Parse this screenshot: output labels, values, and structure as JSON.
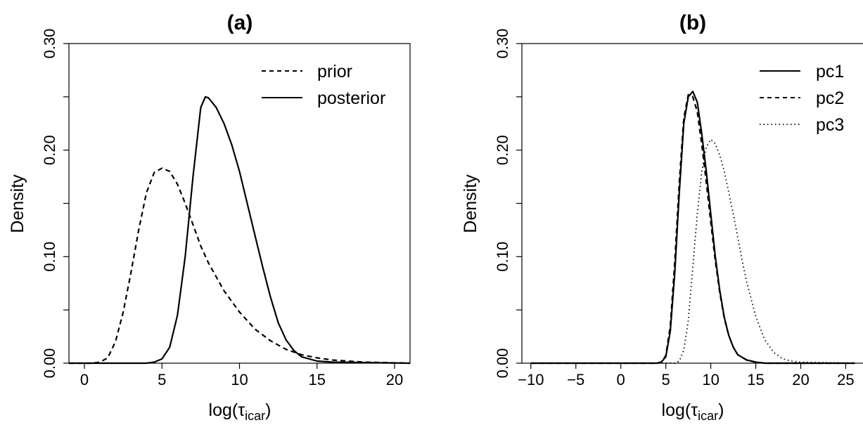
{
  "chart_data": [
    {
      "type": "line",
      "title": "(a)",
      "xlabel": "log(τicar)",
      "xlabel_main": "log(",
      "xlabel_greek": "τ",
      "xlabel_sub": "icar",
      "xlabel_close": ")",
      "ylabel": "Density",
      "xlim": [
        -1,
        21
      ],
      "ylim": [
        0,
        0.3
      ],
      "xticks": [
        0,
        5,
        10,
        15,
        20
      ],
      "xtick_labels": [
        "0",
        "5",
        "10",
        "15",
        "20"
      ],
      "yticks": [
        0,
        0.1,
        0.2,
        0.3
      ],
      "ytick_labels": [
        "0.00",
        "0.10",
        "0.20",
        "0.30"
      ],
      "minor_yticks": [
        0.05,
        0.15,
        0.25
      ],
      "grid": false,
      "legend_position": "top-right",
      "series": [
        {
          "name": "prior",
          "dash": "dashed",
          "x": [
            -1,
            0.5,
            1.0,
            1.5,
            2.0,
            2.5,
            3.0,
            3.5,
            4.0,
            4.5,
            5.0,
            5.5,
            6.0,
            6.5,
            7.0,
            7.5,
            8.0,
            9.0,
            10.0,
            11.0,
            12.0,
            13.0,
            14.0,
            15.0,
            16.0,
            18.0,
            21
          ],
          "y": [
            0,
            0,
            0.001,
            0.005,
            0.02,
            0.048,
            0.085,
            0.125,
            0.16,
            0.179,
            0.183,
            0.18,
            0.168,
            0.15,
            0.13,
            0.11,
            0.094,
            0.068,
            0.048,
            0.032,
            0.021,
            0.013,
            0.008,
            0.005,
            0.003,
            0.001,
            0
          ]
        },
        {
          "name": "posterior",
          "dash": "solid",
          "x": [
            -1,
            4.0,
            4.5,
            5.0,
            5.5,
            6.0,
            6.5,
            7.0,
            7.5,
            7.8,
            8.0,
            8.5,
            9.0,
            9.5,
            10.0,
            10.5,
            11.0,
            11.5,
            12.0,
            12.5,
            13.0,
            13.5,
            14.0,
            15.0,
            16.0,
            21
          ],
          "y": [
            0,
            0,
            0.001,
            0.004,
            0.015,
            0.045,
            0.1,
            0.175,
            0.24,
            0.25,
            0.249,
            0.24,
            0.225,
            0.205,
            0.18,
            0.15,
            0.12,
            0.09,
            0.062,
            0.038,
            0.022,
            0.012,
            0.006,
            0.002,
            0.001,
            0
          ]
        }
      ]
    },
    {
      "type": "line",
      "title": "(b)",
      "xlabel": "log(τicar)",
      "xlabel_main": "log(",
      "xlabel_greek": "τ",
      "xlabel_sub": "icar",
      "xlabel_close": ")",
      "ylabel": "Density",
      "xlim": [
        -11,
        27
      ],
      "ylim": [
        0,
        0.3
      ],
      "xticks": [
        -10,
        -5,
        0,
        5,
        10,
        15,
        20,
        25
      ],
      "xtick_labels": [
        "−10",
        "−5",
        "0",
        "5",
        "10",
        "15",
        "20",
        "25"
      ],
      "yticks": [
        0,
        0.1,
        0.2,
        0.3
      ],
      "ytick_labels": [
        "0.00",
        "0.10",
        "0.20",
        "0.30"
      ],
      "minor_yticks": [
        0.05,
        0.15,
        0.25
      ],
      "grid": false,
      "legend_position": "top-right",
      "series": [
        {
          "name": "pc1",
          "dash": "solid",
          "x": [
            -10,
            4.0,
            4.5,
            5.0,
            5.5,
            6.0,
            6.5,
            7.0,
            7.5,
            8.0,
            8.5,
            9.0,
            9.5,
            10.0,
            10.5,
            11.0,
            11.5,
            12.0,
            12.5,
            13.0,
            14.0,
            15.0,
            16.0,
            26
          ],
          "y": [
            0,
            0,
            0.001,
            0.006,
            0.03,
            0.085,
            0.16,
            0.225,
            0.25,
            0.255,
            0.245,
            0.215,
            0.18,
            0.14,
            0.1,
            0.068,
            0.043,
            0.026,
            0.015,
            0.008,
            0.003,
            0.001,
            0,
            0
          ]
        },
        {
          "name": "pc2",
          "dash": "dashed",
          "x": [
            -10,
            4.0,
            4.5,
            5.0,
            5.5,
            6.0,
            6.5,
            7.0,
            7.5,
            8.0,
            8.5,
            9.0,
            9.5,
            10.0,
            10.5,
            11.0,
            11.5,
            12.0,
            12.5,
            13.0,
            14.0,
            15.0,
            16.0,
            26
          ],
          "y": [
            0,
            0,
            0.001,
            0.007,
            0.035,
            0.095,
            0.17,
            0.23,
            0.252,
            0.25,
            0.236,
            0.205,
            0.17,
            0.132,
            0.096,
            0.066,
            0.042,
            0.026,
            0.015,
            0.008,
            0.003,
            0.001,
            0,
            0
          ]
        },
        {
          "name": "pc3",
          "dash": "dotted",
          "x": [
            -10,
            6.0,
            6.5,
            7.0,
            7.5,
            8.0,
            8.5,
            9.0,
            9.5,
            10.0,
            10.5,
            11.0,
            11.5,
            12.0,
            12.5,
            13.0,
            13.5,
            14.0,
            15.0,
            16.0,
            17.0,
            18.0,
            19.0,
            20.0,
            26
          ],
          "y": [
            0,
            0,
            0.002,
            0.012,
            0.04,
            0.09,
            0.14,
            0.18,
            0.203,
            0.21,
            0.206,
            0.195,
            0.18,
            0.16,
            0.14,
            0.118,
            0.096,
            0.076,
            0.044,
            0.022,
            0.01,
            0.004,
            0.002,
            0.001,
            0
          ]
        }
      ]
    }
  ]
}
